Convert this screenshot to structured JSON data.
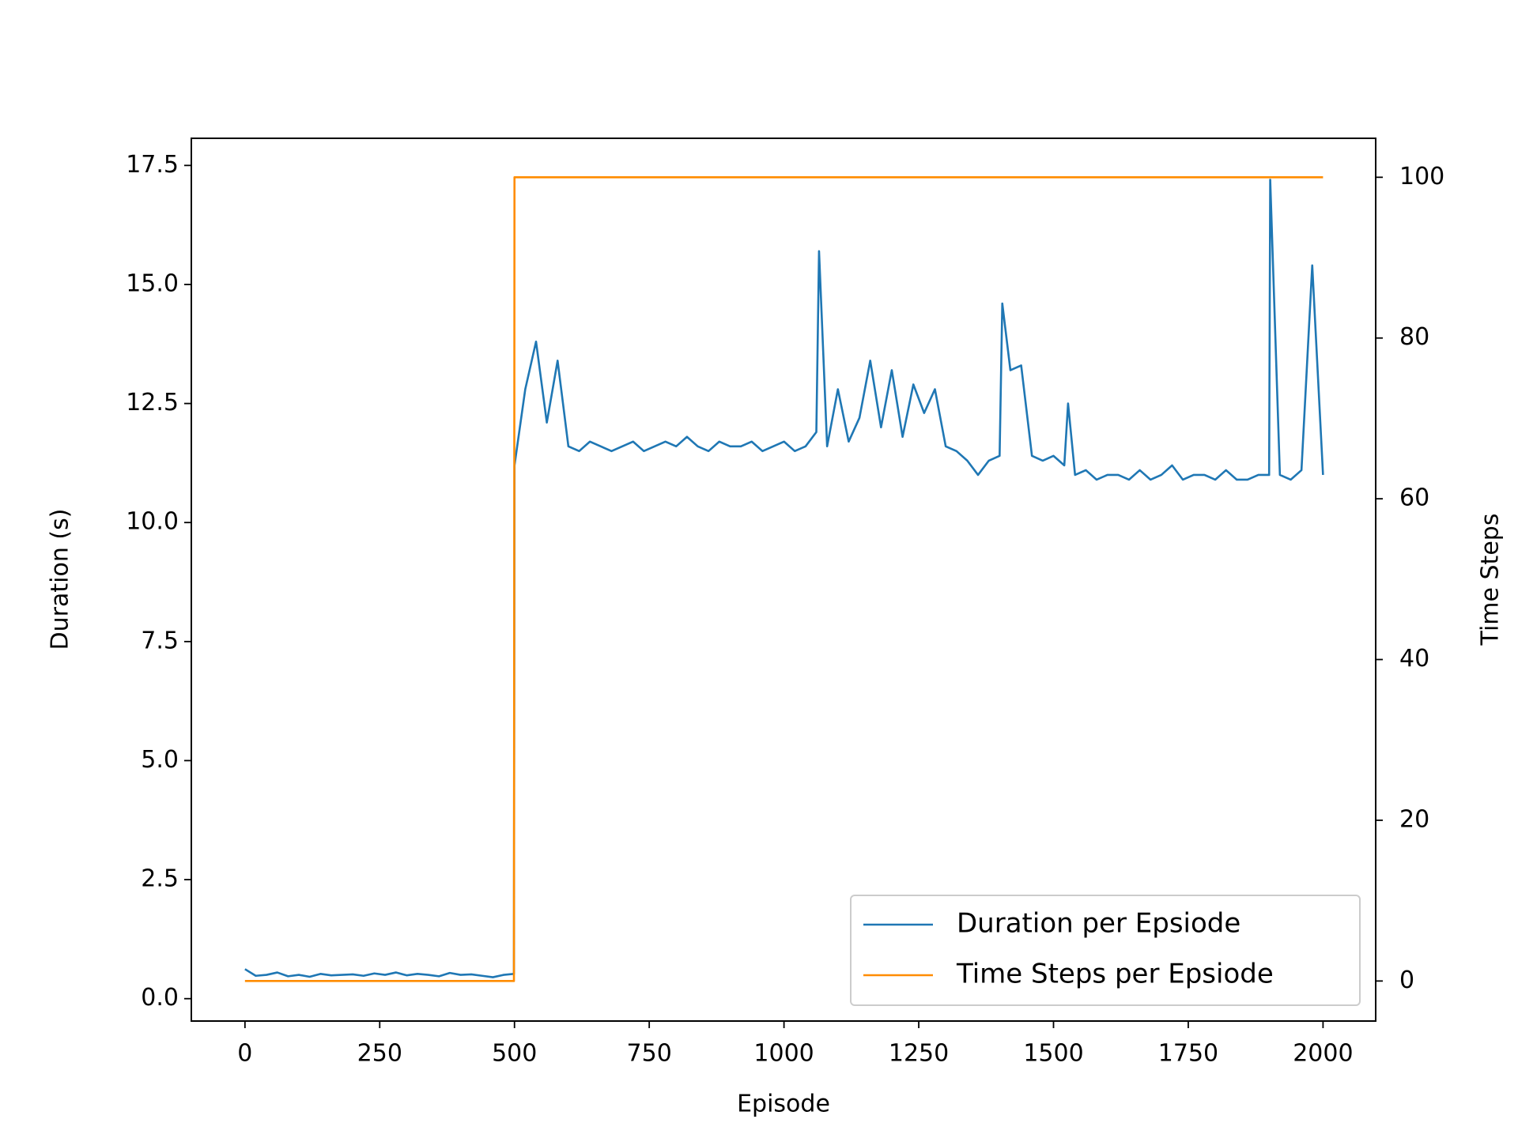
{
  "chart_data": {
    "type": "line",
    "xlabel": "Episode",
    "ylabel": "Duration (s)",
    "y2label": "Time Steps",
    "x": [
      0,
      20,
      40,
      60,
      80,
      100,
      120,
      140,
      160,
      180,
      200,
      220,
      240,
      260,
      280,
      300,
      320,
      340,
      360,
      380,
      400,
      420,
      440,
      460,
      480,
      499,
      500,
      520,
      540,
      560,
      580,
      600,
      620,
      640,
      660,
      680,
      700,
      720,
      740,
      760,
      780,
      800,
      820,
      840,
      860,
      880,
      900,
      920,
      940,
      960,
      980,
      1000,
      1020,
      1040,
      1060,
      1065,
      1080,
      1100,
      1120,
      1140,
      1160,
      1180,
      1200,
      1220,
      1240,
      1260,
      1280,
      1300,
      1320,
      1340,
      1360,
      1380,
      1400,
      1405,
      1420,
      1440,
      1460,
      1480,
      1500,
      1520,
      1527,
      1540,
      1560,
      1580,
      1600,
      1620,
      1640,
      1660,
      1680,
      1700,
      1720,
      1740,
      1760,
      1780,
      1800,
      1820,
      1840,
      1860,
      1880,
      1900,
      1902,
      1920,
      1940,
      1960,
      1980,
      2000
    ],
    "series": [
      {
        "name": "Duration per Epsiode",
        "color": "#1f77b4",
        "axis": "y",
        "values": [
          0.62,
          0.48,
          0.5,
          0.55,
          0.47,
          0.5,
          0.46,
          0.52,
          0.49,
          0.5,
          0.51,
          0.48,
          0.53,
          0.5,
          0.55,
          0.49,
          0.52,
          0.5,
          0.47,
          0.54,
          0.5,
          0.51,
          0.48,
          0.45,
          0.5,
          0.52,
          11.2,
          12.8,
          13.8,
          12.1,
          13.4,
          11.6,
          11.5,
          11.7,
          11.6,
          11.5,
          11.6,
          11.7,
          11.5,
          11.6,
          11.7,
          11.6,
          11.8,
          11.6,
          11.5,
          11.7,
          11.6,
          11.6,
          11.7,
          11.5,
          11.6,
          11.7,
          11.5,
          11.6,
          11.9,
          15.7,
          11.6,
          12.8,
          11.7,
          12.2,
          13.4,
          12.0,
          13.2,
          11.8,
          12.9,
          12.3,
          12.8,
          11.6,
          11.5,
          11.3,
          11.0,
          11.3,
          11.4,
          14.6,
          13.2,
          13.3,
          11.4,
          11.3,
          11.4,
          11.2,
          12.5,
          11.0,
          11.1,
          10.9,
          11.0,
          11.0,
          10.9,
          11.1,
          10.9,
          11.0,
          11.2,
          10.9,
          11.0,
          11.0,
          10.9,
          11.1,
          10.9,
          10.9,
          11.0,
          11.0,
          17.2,
          11.0,
          10.9,
          11.1,
          15.4,
          11.0
        ]
      },
      {
        "name": "Time Steps per Epsiode",
        "color": "#ff8c00",
        "axis": "y2",
        "values": [
          0,
          0,
          0,
          0,
          0,
          0,
          0,
          0,
          0,
          0,
          0,
          0,
          0,
          0,
          0,
          0,
          0,
          0,
          0,
          0,
          0,
          0,
          0,
          0,
          0,
          0,
          100,
          100,
          100,
          100,
          100,
          100,
          100,
          100,
          100,
          100,
          100,
          100,
          100,
          100,
          100,
          100,
          100,
          100,
          100,
          100,
          100,
          100,
          100,
          100,
          100,
          100,
          100,
          100,
          100,
          100,
          100,
          100,
          100,
          100,
          100,
          100,
          100,
          100,
          100,
          100,
          100,
          100,
          100,
          100,
          100,
          100,
          100,
          100,
          100,
          100,
          100,
          100,
          100,
          100,
          100,
          100,
          100,
          100,
          100,
          100,
          100,
          100,
          100,
          100,
          100,
          100,
          100,
          100,
          100,
          100,
          100,
          100,
          100,
          100,
          100,
          100,
          100,
          100,
          100,
          100
        ]
      }
    ],
    "xlim": [
      -99.5,
      2097.7
    ],
    "xticks": [
      0,
      250,
      500,
      750,
      1000,
      1250,
      1500,
      1750,
      2000
    ],
    "ylim": [
      -0.47,
      18.07
    ],
    "yticks": [
      {
        "value": 0,
        "label": "0.0"
      },
      2.5,
      {
        "value": 5,
        "label": "5.0"
      },
      7.5,
      {
        "value": 10,
        "label": "10.0"
      },
      12.5,
      {
        "value": 15,
        "label": "15.0"
      },
      17.5
    ],
    "y2lim": [
      -4.98,
      104.85
    ],
    "y2ticks": [
      0,
      20,
      40,
      60,
      80,
      100
    ],
    "legend": "lower right",
    "grid": false
  }
}
